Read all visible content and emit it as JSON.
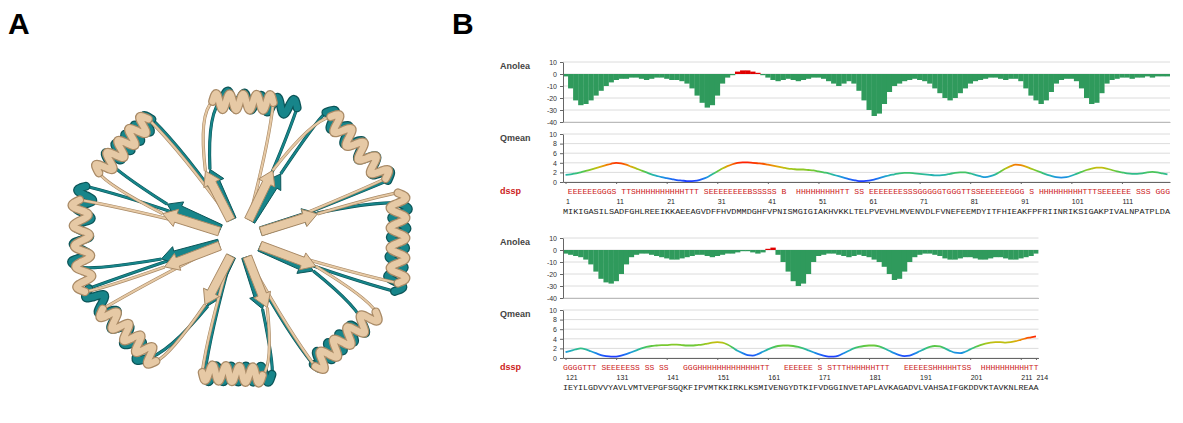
{
  "panel_labels": [
    "A",
    "B"
  ],
  "chart_data": [
    {
      "type": "bar",
      "title": "Anolea",
      "x": [
        1,
        2,
        3,
        4,
        5,
        6,
        7,
        8,
        9,
        10,
        11,
        12,
        13,
        14,
        15,
        16,
        17,
        18,
        19,
        20,
        21,
        22,
        23,
        24,
        25,
        26,
        27,
        28,
        29,
        30,
        31,
        32,
        33,
        34,
        35,
        36,
        37,
        38,
        39,
        40,
        41,
        42,
        43,
        44,
        45,
        46,
        47,
        48,
        49,
        50,
        51,
        52,
        53,
        54,
        55,
        56,
        57,
        58,
        59,
        60,
        61,
        62,
        63,
        64,
        65,
        66,
        67,
        68,
        69,
        70,
        71,
        72,
        73,
        74,
        75,
        76,
        77,
        78,
        79,
        80,
        81,
        82,
        83,
        84,
        85,
        86,
        87,
        88,
        89,
        90,
        91,
        92,
        93,
        94,
        95,
        96,
        97,
        98,
        99,
        100,
        101,
        102,
        103,
        104,
        105,
        106,
        107,
        108,
        109,
        110,
        111,
        112,
        113,
        114,
        115,
        116,
        117,
        118,
        119,
        120
      ],
      "values": [
        -2,
        -12,
        -22,
        -26,
        -25,
        -22,
        -18,
        -14,
        -10,
        -7,
        -5,
        -4,
        -4,
        -3,
        -3,
        -4,
        -5,
        -4,
        -3,
        -3,
        -4,
        -5,
        -5,
        -6,
        -8,
        -12,
        -18,
        -24,
        -28,
        -26,
        -18,
        -8,
        -3,
        -1,
        2,
        3,
        3,
        2,
        1,
        -1,
        -3,
        -5,
        -6,
        -5,
        -4,
        -5,
        -6,
        -5,
        -4,
        -3,
        -3,
        -4,
        -6,
        -8,
        -10,
        -8,
        -6,
        -8,
        -14,
        -22,
        -30,
        -35,
        -33,
        -25,
        -15,
        -10,
        -8,
        -6,
        -5,
        -4,
        -5,
        -6,
        -8,
        -12,
        -16,
        -20,
        -22,
        -20,
        -16,
        -12,
        -8,
        -6,
        -5,
        -4,
        -3,
        -3,
        -4,
        -5,
        -4,
        -4,
        -6,
        -12,
        -18,
        -22,
        -25,
        -22,
        -15,
        -8,
        -5,
        -4,
        -4,
        -6,
        -12,
        -20,
        -25,
        -24,
        -16,
        -8,
        -5,
        -4,
        -3,
        -3,
        -4,
        -3,
        -3,
        -2,
        -3,
        -2,
        -2,
        -2
      ],
      "xlim": [
        0.5,
        120.5
      ],
      "ylim": [
        -40,
        10
      ],
      "yticks": [
        10,
        0,
        -10,
        -20,
        -30,
        -40
      ],
      "grid": true,
      "tick_labels": "y"
    },
    {
      "type": "line",
      "title": "Qmean",
      "x": [
        1,
        2,
        3,
        4,
        5,
        6,
        7,
        8,
        9,
        10,
        11,
        12,
        13,
        14,
        15,
        16,
        17,
        18,
        19,
        20,
        21,
        22,
        23,
        24,
        25,
        26,
        27,
        28,
        29,
        30,
        31,
        32,
        33,
        34,
        35,
        36,
        37,
        38,
        39,
        40,
        41,
        42,
        43,
        44,
        45,
        46,
        47,
        48,
        49,
        50,
        51,
        52,
        53,
        54,
        55,
        56,
        57,
        58,
        59,
        60,
        61,
        62,
        63,
        64,
        65,
        66,
        67,
        68,
        69,
        70,
        71,
        72,
        73,
        74,
        75,
        76,
        77,
        78,
        79,
        80,
        81,
        82,
        83,
        84,
        85,
        86,
        87,
        88,
        89,
        90,
        91,
        92,
        93,
        94,
        95,
        96,
        97,
        98,
        99,
        100,
        101,
        102,
        103,
        104,
        105,
        106,
        107,
        108,
        109,
        110,
        111,
        112,
        113,
        114,
        115,
        116,
        117,
        118,
        119,
        120
      ],
      "values": [
        1.5,
        1.6,
        1.8,
        2.0,
        2.3,
        2.6,
        2.9,
        3.2,
        3.5,
        3.8,
        4.0,
        3.9,
        3.6,
        3.2,
        2.8,
        2.4,
        2.0,
        1.6,
        1.3,
        1.0,
        0.8,
        0.6,
        0.4,
        0.3,
        0.2,
        0.2,
        0.3,
        0.6,
        1.0,
        1.6,
        2.2,
        2.8,
        3.3,
        3.7,
        4.0,
        4.1,
        4.1,
        4.0,
        3.9,
        3.8,
        3.6,
        3.4,
        3.2,
        3.0,
        2.8,
        2.7,
        2.6,
        2.6,
        2.5,
        2.4,
        2.2,
        2.0,
        1.8,
        1.5,
        1.2,
        0.9,
        0.6,
        0.4,
        0.2,
        0.2,
        0.3,
        0.5,
        0.8,
        1.1,
        1.4,
        1.6,
        1.8,
        1.9,
        1.9,
        1.8,
        1.7,
        1.6,
        1.5,
        1.4,
        1.4,
        1.5,
        1.7,
        1.9,
        2.0,
        2.0,
        1.8,
        1.5,
        1.2,
        1.0,
        1.2,
        1.6,
        2.2,
        2.8,
        3.3,
        3.6,
        3.5,
        3.2,
        2.8,
        2.4,
        2.0,
        1.6,
        1.3,
        1.0,
        0.9,
        1.0,
        1.3,
        1.7,
        2.1,
        2.5,
        2.8,
        3.0,
        3.0,
        2.8,
        2.5,
        2.2,
        2.0,
        1.8,
        1.7,
        1.7,
        1.8,
        2.0,
        2.1,
        2.0,
        1.8,
        1.6
      ],
      "xlim": [
        0.5,
        120.5
      ],
      "xticks": [
        1,
        11,
        21,
        31,
        41,
        51,
        61,
        71,
        81,
        91,
        101,
        111
      ],
      "ylim": [
        0,
        10
      ],
      "yticks": [
        10,
        8,
        6,
        4,
        2,
        0
      ],
      "grid": true
    },
    {
      "type": "bar",
      "title": "Anolea",
      "x": [
        121,
        122,
        123,
        124,
        125,
        126,
        127,
        128,
        129,
        130,
        131,
        132,
        133,
        134,
        135,
        136,
        137,
        138,
        139,
        140,
        141,
        142,
        143,
        144,
        145,
        146,
        147,
        148,
        149,
        150,
        151,
        152,
        153,
        154,
        155,
        156,
        157,
        158,
        159,
        160,
        161,
        162,
        163,
        164,
        165,
        166,
        167,
        168,
        169,
        170,
        171,
        172,
        173,
        174,
        175,
        176,
        177,
        178,
        179,
        180,
        181,
        182,
        183,
        184,
        185,
        186,
        187,
        188,
        189,
        190,
        191,
        192,
        193,
        194,
        195,
        196,
        197,
        198,
        199,
        200,
        201,
        202,
        203,
        204,
        205,
        206,
        207,
        208,
        209,
        210,
        211,
        212,
        213,
        214
      ],
      "values": [
        -3,
        -4,
        -5,
        -6,
        -8,
        -12,
        -18,
        -24,
        -27,
        -28,
        -26,
        -20,
        -12,
        -6,
        -4,
        -3,
        -3,
        -4,
        -5,
        -6,
        -7,
        -8,
        -8,
        -7,
        -6,
        -5,
        -4,
        -4,
        -5,
        -6,
        -5,
        -4,
        -3,
        -3,
        -2,
        -1,
        -1,
        -2,
        -3,
        -2,
        1,
        2,
        -4,
        -10,
        -18,
        -26,
        -30,
        -28,
        -20,
        -10,
        -5,
        -4,
        -3,
        -3,
        -4,
        -5,
        -6,
        -5,
        -4,
        -5,
        -6,
        -8,
        -10,
        -14,
        -20,
        -25,
        -24,
        -18,
        -10,
        -6,
        -4,
        -3,
        -3,
        -4,
        -5,
        -7,
        -8,
        -8,
        -7,
        -6,
        -6,
        -7,
        -8,
        -8,
        -7,
        -6,
        -6,
        -7,
        -8,
        -8,
        -7,
        -6,
        -5,
        -3
      ],
      "xlim": [
        120.5,
        214.5
      ],
      "ylim": [
        -40,
        10
      ],
      "yticks": [
        10,
        0,
        -10,
        -20,
        -30,
        -40
      ],
      "grid": true,
      "tick_labels": "y"
    },
    {
      "type": "line",
      "title": "Qmean",
      "x": [
        121,
        122,
        123,
        124,
        125,
        126,
        127,
        128,
        129,
        130,
        131,
        132,
        133,
        134,
        135,
        136,
        137,
        138,
        139,
        140,
        141,
        142,
        143,
        144,
        145,
        146,
        147,
        148,
        149,
        150,
        151,
        152,
        153,
        154,
        155,
        156,
        157,
        158,
        159,
        160,
        161,
        162,
        163,
        164,
        165,
        166,
        167,
        168,
        169,
        170,
        171,
        172,
        173,
        174,
        175,
        176,
        177,
        178,
        179,
        180,
        181,
        182,
        183,
        184,
        185,
        186,
        187,
        188,
        189,
        190,
        191,
        192,
        193,
        194,
        195,
        196,
        197,
        198,
        199,
        200,
        201,
        202,
        203,
        204,
        205,
        206,
        207,
        208,
        209,
        210,
        211,
        212,
        213,
        214
      ],
      "values": [
        1.2,
        1.5,
        1.8,
        2.0,
        1.8,
        1.4,
        1.0,
        0.6,
        0.4,
        0.3,
        0.3,
        0.5,
        0.8,
        1.2,
        1.6,
        2.0,
        2.3,
        2.5,
        2.6,
        2.7,
        2.7,
        2.8,
        2.8,
        2.7,
        2.6,
        2.6,
        2.7,
        2.8,
        3.0,
        3.2,
        3.3,
        3.2,
        2.8,
        2.2,
        1.5,
        1.0,
        0.6,
        0.5,
        0.8,
        1.3,
        1.8,
        2.2,
        2.5,
        2.6,
        2.6,
        2.5,
        2.3,
        2.0,
        1.6,
        1.2,
        0.8,
        0.5,
        0.3,
        0.3,
        0.5,
        1.0,
        1.5,
        2.0,
        2.3,
        2.5,
        2.6,
        2.6,
        2.4,
        2.0,
        1.5,
        1.0,
        0.6,
        0.4,
        0.5,
        0.9,
        1.4,
        1.9,
        2.3,
        2.5,
        2.4,
        2.0,
        1.5,
        1.1,
        1.0,
        1.3,
        1.8,
        2.3,
        2.7,
        3.0,
        3.2,
        3.3,
        3.3,
        3.2,
        3.3,
        3.5,
        3.8,
        4.1,
        4.3,
        4.5
      ],
      "xlim": [
        120.5,
        214.5
      ],
      "xticks": [
        121,
        131,
        141,
        151,
        161,
        171,
        181,
        191,
        201,
        211,
        214
      ],
      "ylim": [
        0,
        10
      ],
      "yticks": [
        10,
        8,
        6,
        4,
        2,
        0
      ],
      "grid": true
    }
  ],
  "tracks": [
    {
      "label": "dssp",
      "dssp": " EEEEEEGGGS TTSHHHHHHHHHHTTT SEEEEEEEEBSSSSS B  HHHHHHHHHTT SS EEEEEEESSSGGGGGTGGGTTSSEEEEEEGGG S HHHHHHHHHTTTSEEEEEE SSS GGG",
      "sequence": "MIKIGASILSADFGHLREEIKKAEEAGVDFFHVDMMDGHFVPNISMGIGIAKHVKKLTELPVEVHLMVENVDLFVNEFEEMDYITFHIEAKFPFRIINRIKSIGAKPIVALNPATPLDA"
    },
    {
      "label": "dssp",
      "dssp": "GGGGTTT SEEEEESS SS SS   GGGHHHHHHHHHHHHHTT   EEEEEE S STTTHHHHHHTTT   EEEEESHHHHHTSS  HHHHHHHHHHTT",
      "sequence": "IEYILGDVVYAVLVMTVEPGFSGQKFIPVMTKKIRKLKSMIVENGYDTKIFVDGGINVETAPLAVKAGADVLVAHSAIFGKDDVKTAVKNLREAA"
    }
  ]
}
